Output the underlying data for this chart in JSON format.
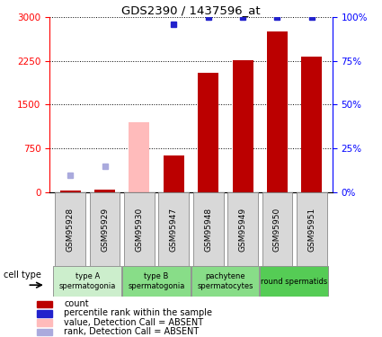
{
  "title": "GDS2390 / 1437596_at",
  "samples": [
    "GSM95928",
    "GSM95929",
    "GSM95930",
    "GSM95947",
    "GSM95948",
    "GSM95949",
    "GSM95950",
    "GSM95951"
  ],
  "counts": [
    30,
    40,
    30,
    620,
    2050,
    2260,
    2750,
    2320
  ],
  "percentile_ranks_pct": [
    null,
    null,
    null,
    96,
    100,
    100,
    100,
    100
  ],
  "absent_values": [
    null,
    null,
    1200,
    null,
    null,
    null,
    null,
    null
  ],
  "absent_ranks_pct": [
    9.5,
    14.5,
    null,
    null,
    null,
    null,
    null,
    null
  ],
  "ylim_left": [
    0,
    3000
  ],
  "ylim_right": [
    0,
    100
  ],
  "yticks_left": [
    0,
    750,
    1500,
    2250,
    3000
  ],
  "yticks_right": [
    0,
    25,
    50,
    75,
    100
  ],
  "bar_color": "#bb0000",
  "absent_bar_color": "#ffbbbb",
  "blue_dot_color": "#2222cc",
  "absent_blue_color": "#aaaadd",
  "group_defs": [
    {
      "label": "type A\nspermatogonia",
      "start": 0,
      "end": 2,
      "color": "#cceecc"
    },
    {
      "label": "type B\nspermatogonia",
      "start": 2,
      "end": 4,
      "color": "#88dd88"
    },
    {
      "label": "pachytene\nspermatocytes",
      "start": 4,
      "end": 6,
      "color": "#88dd88"
    },
    {
      "label": "round spermatids",
      "start": 6,
      "end": 8,
      "color": "#55cc55"
    }
  ],
  "legend_items": [
    {
      "color": "#bb0000",
      "label": "count"
    },
    {
      "color": "#2222cc",
      "label": "percentile rank within the sample"
    },
    {
      "color": "#ffbbbb",
      "label": "value, Detection Call = ABSENT"
    },
    {
      "color": "#aaaadd",
      "label": "rank, Detection Call = ABSENT"
    }
  ],
  "cell_type_label": "cell type"
}
